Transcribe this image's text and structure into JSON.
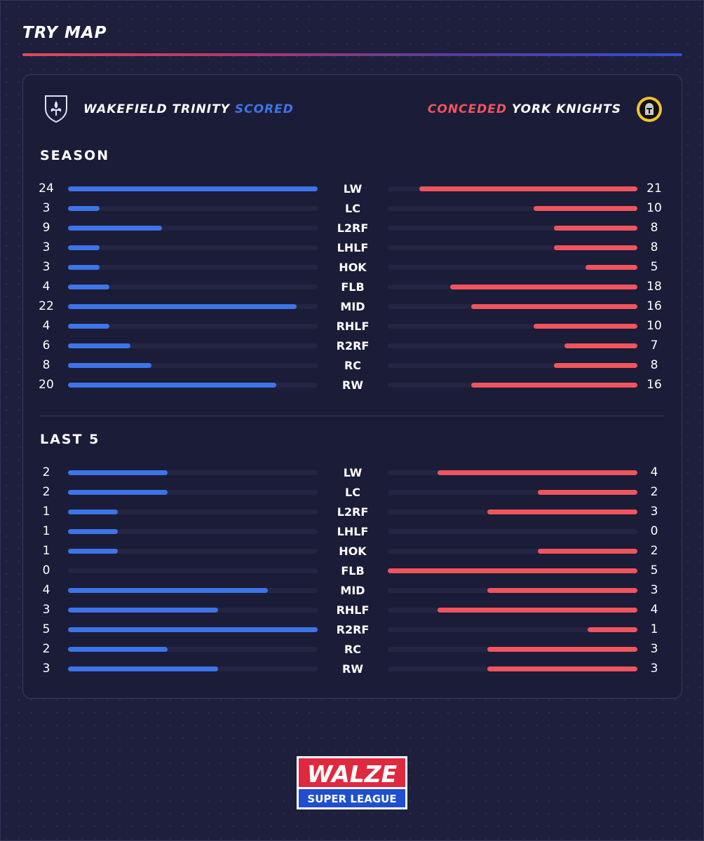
{
  "header": {
    "title": "TRY MAP"
  },
  "teams": {
    "home": "WAKEFIELD TRINITY",
    "home_metric": "SCORED",
    "away": "YORK KNIGHTS",
    "away_metric": "CONCEDED"
  },
  "logo": {
    "line1": "WALZE",
    "line2": "SUPER LEAGUE"
  },
  "colors": {
    "scored": "#3d74e8",
    "conceded": "#f0545d",
    "background": "#1e1f3c"
  },
  "chart_data": [
    {
      "type": "bar",
      "title": "SEASON",
      "categories": [
        "LW",
        "LC",
        "L2RF",
        "LHLF",
        "HOK",
        "FLB",
        "MID",
        "RHLF",
        "R2RF",
        "RC",
        "RW"
      ],
      "series": [
        {
          "name": "SCORED",
          "values": [
            24,
            3,
            9,
            3,
            3,
            4,
            22,
            4,
            6,
            8,
            20
          ]
        },
        {
          "name": "CONCEDED",
          "values": [
            21,
            10,
            8,
            8,
            5,
            18,
            16,
            10,
            7,
            8,
            16
          ]
        }
      ],
      "xlim": [
        0,
        24
      ]
    },
    {
      "type": "bar",
      "title": "LAST 5",
      "categories": [
        "LW",
        "LC",
        "L2RF",
        "LHLF",
        "HOK",
        "FLB",
        "MID",
        "RHLF",
        "R2RF",
        "RC",
        "RW"
      ],
      "series": [
        {
          "name": "SCORED",
          "values": [
            2,
            2,
            1,
            1,
            1,
            0,
            4,
            3,
            5,
            2,
            3
          ]
        },
        {
          "name": "CONCEDED",
          "values": [
            4,
            2,
            3,
            0,
            2,
            5,
            3,
            4,
            1,
            3,
            3
          ]
        }
      ],
      "xlim": [
        0,
        5
      ]
    }
  ]
}
